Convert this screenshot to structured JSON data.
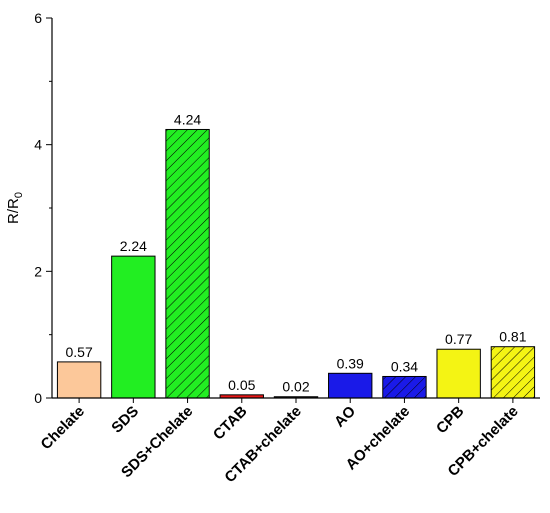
{
  "chart_data": {
    "type": "bar",
    "title": "",
    "xlabel": "",
    "ylabel": "R/R",
    "ylabel_sub": "0",
    "ylim": [
      0,
      6
    ],
    "yticks": [
      0,
      2,
      4,
      6
    ],
    "grid": false,
    "categories": [
      "Chelate",
      "SDS",
      "SDS+Chelate",
      "CTAB",
      "CTAB+chelate",
      "AO",
      "AO+chelate",
      "CPB",
      "CPB+chelate"
    ],
    "values": [
      0.57,
      2.24,
      4.24,
      0.05,
      0.02,
      0.39,
      0.34,
      0.77,
      0.81
    ],
    "value_labels": [
      "0.57",
      "2.24",
      "4.24",
      "0.05",
      "0.02",
      "0.39",
      "0.34",
      "0.77",
      "0.81"
    ],
    "colors": [
      "#FCC89A",
      "#22EE22",
      "#22EE22",
      "#E81818",
      "#202020",
      "#1A1AE8",
      "#1A1AE8",
      "#F4F414",
      "#F4F414"
    ],
    "hatched": [
      false,
      false,
      true,
      false,
      true,
      false,
      true,
      false,
      true
    ]
  }
}
